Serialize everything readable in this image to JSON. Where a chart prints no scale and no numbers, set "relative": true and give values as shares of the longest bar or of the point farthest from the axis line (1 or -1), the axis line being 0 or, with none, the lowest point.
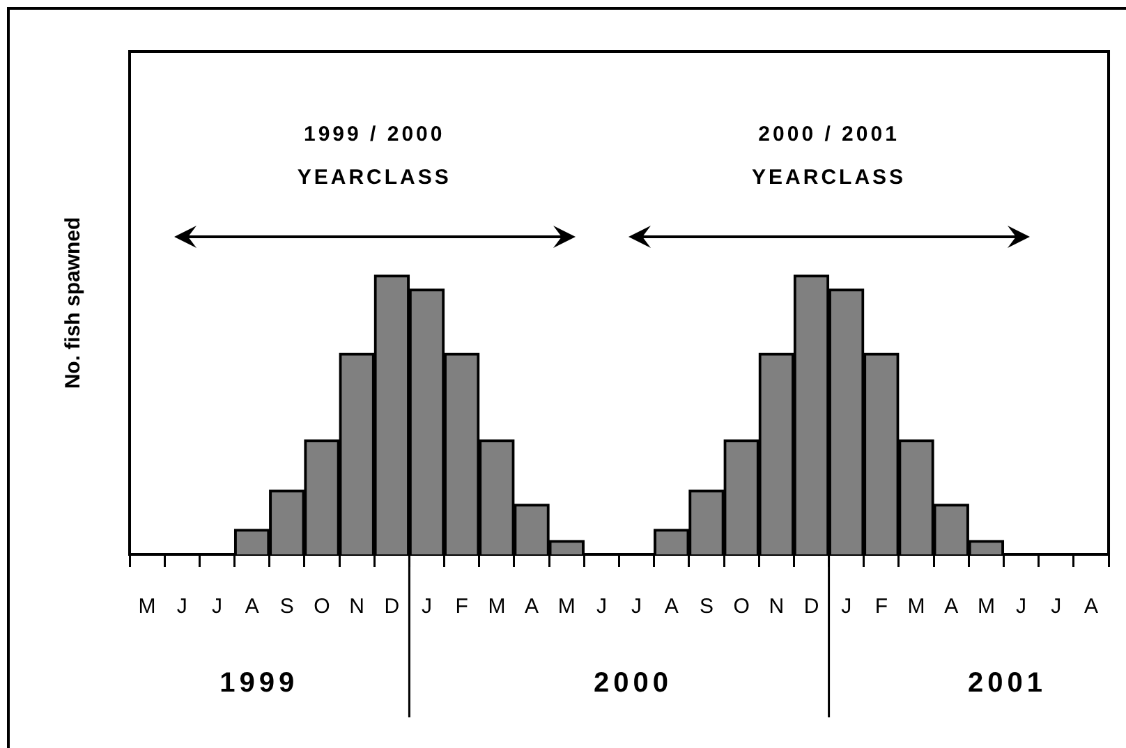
{
  "chart_data": {
    "type": "bar",
    "ylabel": "No. fish spawned",
    "relative": true,
    "color": "#808080",
    "categories": [
      "M",
      "J",
      "J",
      "A",
      "S",
      "O",
      "N",
      "D",
      "J",
      "F",
      "M",
      "A",
      "M",
      "J",
      "J",
      "A",
      "S",
      "O",
      "N",
      "D",
      "J",
      "F",
      "M",
      "A",
      "M",
      "J",
      "J",
      "A"
    ],
    "values": [
      0,
      0,
      0,
      0.09,
      0.23,
      0.41,
      0.72,
      1,
      0.95,
      0.72,
      0.41,
      0.18,
      0.05,
      0,
      0,
      0.09,
      0.23,
      0.41,
      0.72,
      1,
      0.95,
      0.72,
      0.41,
      0.18,
      0.05,
      0,
      0,
      0
    ],
    "annotations": [
      "1999 / 2000",
      "YEARCLASS",
      "2000 / 2001",
      "YEARCLASS",
      "1999",
      "2000",
      "2001"
    ]
  }
}
